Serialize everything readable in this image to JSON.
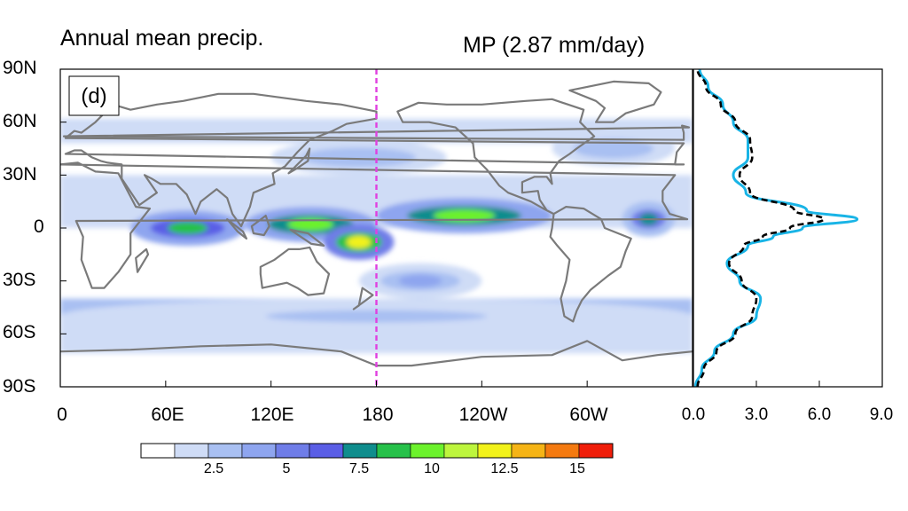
{
  "chart_data": [
    {
      "type": "heatmap",
      "title": "Annual mean precip.",
      "subtitle": "MP (2.87 mm/day)",
      "panel_label": "(d)",
      "x_ticks": [
        "0",
        "60E",
        "120E",
        "180",
        "120W",
        "60W"
      ],
      "y_ticks": [
        "90N",
        "60N",
        "30N",
        "0",
        "30S",
        "60S",
        "90S"
      ],
      "xlim": [
        0,
        360
      ],
      "ylim": [
        -90,
        90
      ],
      "marker_line": {
        "lon": 180,
        "color": "#e040e0",
        "style": "dashed"
      },
      "colorbar": {
        "levels": [
          1.25,
          2.5,
          3.75,
          5,
          6.25,
          7.5,
          8.75,
          10,
          11.25,
          12.5,
          13.75,
          15
        ],
        "tick_labels": [
          "2.5",
          "5",
          "7.5",
          "10",
          "12.5",
          "15"
        ],
        "colors": [
          "#ffffff",
          "#cfdcf6",
          "#a9c0f2",
          "#8ea5ef",
          "#6f7de8",
          "#5a5ee6",
          "#0f8d8d",
          "#27c14a",
          "#6cf22c",
          "#bdf53d",
          "#f2f21a",
          "#f5b416",
          "#f47a10",
          "#f01e0a"
        ]
      },
      "bands": [
        {
          "lat": 0,
          "lon_start": 40,
          "lon_end": 105,
          "value": 9
        },
        {
          "lat": 2,
          "lon_start": 105,
          "lon_end": 180,
          "value": 11
        },
        {
          "lat": -8,
          "lon_start": 150,
          "lon_end": 190,
          "value": 13
        },
        {
          "lat": 7,
          "lon_start": 180,
          "lon_end": 280,
          "value": 10
        },
        {
          "lat": 5,
          "lon_start": 320,
          "lon_end": 350,
          "value": 8
        },
        {
          "lat": -30,
          "lon_start": 170,
          "lon_end": 240,
          "value": 4
        },
        {
          "lat": 40,
          "lon_start": 120,
          "lon_end": 220,
          "value": 3.5
        },
        {
          "lat": 45,
          "lon_start": 280,
          "lon_end": 350,
          "value": 3.5
        },
        {
          "lat": -50,
          "lon_start": 0,
          "lon_end": 360,
          "value": 3
        }
      ]
    },
    {
      "type": "line",
      "x_ticks": [
        "0.0",
        "3.0",
        "6.0",
        "9.0"
      ],
      "xlim": [
        0,
        9
      ],
      "ylim": [
        -90,
        90
      ],
      "series": [
        {
          "color": "#19b4e6",
          "style": "solid",
          "lat": [
            -90,
            -80,
            -70,
            -60,
            -50,
            -40,
            -30,
            -20,
            -10,
            -5,
            0,
            5,
            10,
            20,
            30,
            40,
            50,
            60,
            70,
            80,
            90
          ],
          "values": [
            0.1,
            0.4,
            1.0,
            1.9,
            3.0,
            3.2,
            2.2,
            1.6,
            2.6,
            3.8,
            5.2,
            7.8,
            5.4,
            2.5,
            1.9,
            2.6,
            2.6,
            1.9,
            1.4,
            0.7,
            0.3
          ]
        },
        {
          "color": "#000000",
          "style": "dashed",
          "lat": [
            -90,
            -80,
            -70,
            -60,
            -50,
            -40,
            -30,
            -20,
            -10,
            -5,
            0,
            5,
            10,
            20,
            30,
            40,
            50,
            60,
            70,
            80,
            90
          ],
          "values": [
            0.2,
            0.5,
            1.1,
            2.0,
            2.8,
            3.0,
            2.3,
            1.7,
            2.4,
            3.3,
            4.6,
            6.2,
            4.8,
            2.7,
            2.2,
            2.8,
            2.7,
            2.0,
            1.3,
            0.6,
            0.2
          ]
        }
      ]
    }
  ]
}
